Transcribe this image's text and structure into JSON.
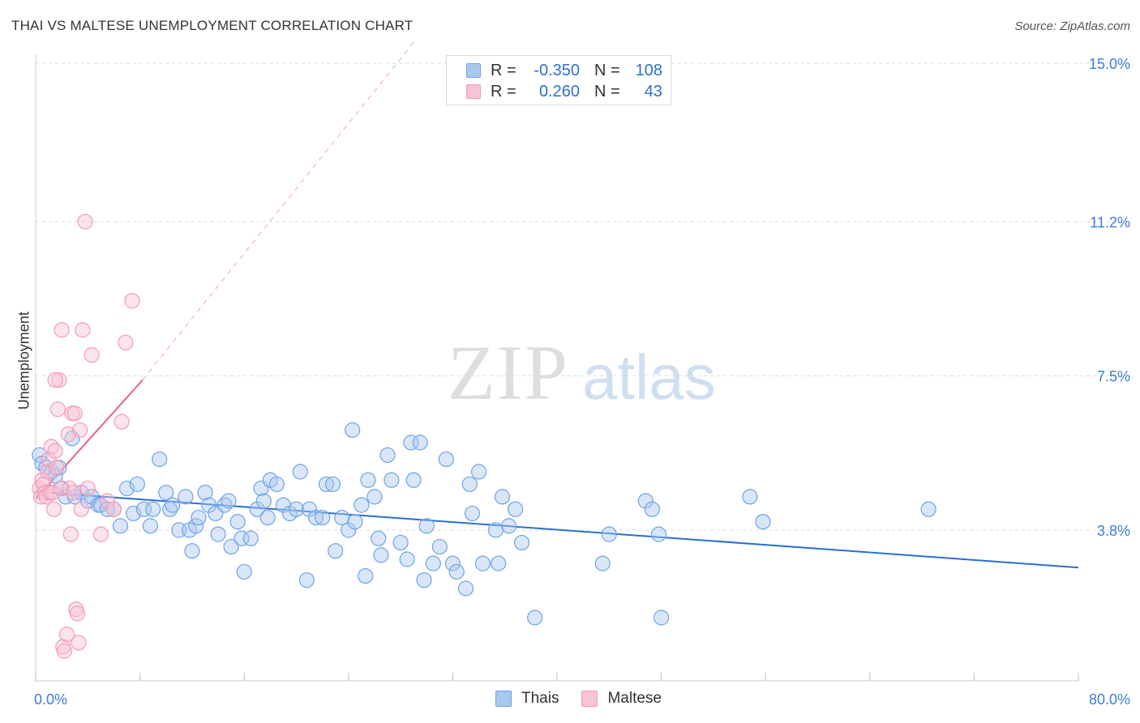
{
  "title": "THAI VS MALTESE UNEMPLOYMENT CORRELATION CHART",
  "source": "Source: ZipAtlas.com",
  "watermark": {
    "zip": "ZIP",
    "atlas": "atlas"
  },
  "colors": {
    "thais": "#6fa3e6",
    "thais_fill": "#a8c8f0",
    "maltese": "#f39ab7",
    "maltese_fill": "#f8c3d4",
    "thais_line": "#2a6fcf",
    "maltese_line": "#e8608f",
    "axis_text": "#3b7dd8"
  },
  "legend": {
    "thais": {
      "r_label": "R =",
      "r_value": "-0.350",
      "n_label": "N =",
      "n_value": "108"
    },
    "maltese": {
      "r_label": "R =",
      "r_value": "0.260",
      "n_label": "N =",
      "n_value": "43"
    }
  },
  "chart_data": {
    "type": "scatter",
    "title": "THAI VS MALTESE UNEMPLOYMENT CORRELATION CHART",
    "xlabel": "",
    "ylabel": "Unemployment",
    "xlim": [
      0,
      80
    ],
    "ylim": [
      0,
      15.5
    ],
    "x_tick_labels": [
      "0.0%",
      "80.0%"
    ],
    "y_tick_labels": [
      "3.8%",
      "7.5%",
      "11.2%",
      "15.0%"
    ],
    "y_ticks": [
      3.8,
      7.5,
      11.2,
      15.0
    ],
    "grid": true,
    "legend_position": "top-center",
    "series": [
      {
        "name": "Thais",
        "points": [
          [
            0.3,
            5.6
          ],
          [
            0.5,
            5.4
          ],
          [
            0.8,
            5.3
          ],
          [
            1.2,
            5.2
          ],
          [
            1.5,
            5.1
          ],
          [
            1.8,
            5.3
          ],
          [
            2.0,
            4.8
          ],
          [
            2.3,
            4.6
          ],
          [
            2.8,
            6.0
          ],
          [
            3.0,
            4.6
          ],
          [
            3.5,
            4.7
          ],
          [
            4.0,
            4.5
          ],
          [
            4.3,
            4.6
          ],
          [
            4.8,
            4.4
          ],
          [
            5.0,
            4.4
          ],
          [
            5.5,
            4.3
          ],
          [
            6.0,
            4.3
          ],
          [
            6.5,
            3.9
          ],
          [
            7.0,
            4.8
          ],
          [
            7.5,
            4.2
          ],
          [
            7.8,
            4.9
          ],
          [
            8.3,
            4.3
          ],
          [
            8.8,
            3.9
          ],
          [
            9.0,
            4.3
          ],
          [
            9.5,
            5.5
          ],
          [
            10.0,
            4.7
          ],
          [
            10.3,
            4.3
          ],
          [
            10.5,
            4.4
          ],
          [
            11.0,
            3.8
          ],
          [
            11.5,
            4.6
          ],
          [
            11.8,
            3.8
          ],
          [
            12.0,
            3.3
          ],
          [
            12.3,
            3.9
          ],
          [
            12.5,
            4.1
          ],
          [
            13.0,
            4.7
          ],
          [
            13.3,
            4.4
          ],
          [
            13.8,
            4.2
          ],
          [
            14.0,
            3.7
          ],
          [
            14.5,
            4.4
          ],
          [
            14.8,
            4.5
          ],
          [
            15.0,
            3.4
          ],
          [
            15.5,
            4.0
          ],
          [
            15.8,
            3.6
          ],
          [
            16.0,
            2.8
          ],
          [
            16.5,
            3.6
          ],
          [
            17.0,
            4.3
          ],
          [
            17.3,
            4.8
          ],
          [
            17.5,
            4.5
          ],
          [
            17.8,
            4.1
          ],
          [
            18.0,
            5.0
          ],
          [
            18.5,
            4.9
          ],
          [
            19.0,
            4.4
          ],
          [
            19.5,
            4.2
          ],
          [
            20.0,
            4.3
          ],
          [
            20.3,
            5.2
          ],
          [
            20.8,
            2.6
          ],
          [
            21.0,
            4.3
          ],
          [
            21.5,
            4.1
          ],
          [
            22.0,
            4.1
          ],
          [
            22.3,
            4.9
          ],
          [
            22.8,
            4.9
          ],
          [
            23.0,
            3.3
          ],
          [
            23.5,
            4.1
          ],
          [
            24.0,
            3.8
          ],
          [
            24.5,
            4.0
          ],
          [
            25.0,
            4.4
          ],
          [
            25.3,
            2.7
          ],
          [
            25.5,
            5.0
          ],
          [
            26.0,
            4.6
          ],
          [
            26.3,
            3.6
          ],
          [
            26.5,
            3.2
          ],
          [
            27.0,
            5.6
          ],
          [
            27.3,
            5.0
          ],
          [
            28.0,
            3.5
          ],
          [
            28.5,
            3.1
          ],
          [
            28.8,
            5.9
          ],
          [
            29.0,
            5.0
          ],
          [
            29.5,
            5.9
          ],
          [
            29.8,
            2.6
          ],
          [
            30.0,
            3.9
          ],
          [
            30.5,
            3.0
          ],
          [
            31.0,
            3.4
          ],
          [
            31.5,
            5.5
          ],
          [
            32.0,
            3.0
          ],
          [
            32.3,
            2.8
          ],
          [
            33.0,
            2.4
          ],
          [
            33.3,
            4.9
          ],
          [
            33.5,
            4.2
          ],
          [
            34.0,
            5.2
          ],
          [
            34.3,
            3.0
          ],
          [
            35.3,
            3.8
          ],
          [
            35.5,
            3.0
          ],
          [
            35.8,
            4.6
          ],
          [
            36.3,
            3.9
          ],
          [
            36.8,
            4.3
          ],
          [
            37.3,
            3.5
          ],
          [
            38.3,
            1.7
          ],
          [
            43.5,
            3.0
          ],
          [
            44.0,
            3.7
          ],
          [
            46.8,
            4.5
          ],
          [
            47.3,
            4.3
          ],
          [
            47.8,
            3.7
          ],
          [
            48.0,
            1.7
          ],
          [
            54.8,
            4.6
          ],
          [
            55.8,
            4.0
          ],
          [
            68.5,
            4.3
          ],
          [
            24.3,
            6.2
          ]
        ]
      },
      {
        "name": "Maltese",
        "points": [
          [
            0.3,
            4.8
          ],
          [
            0.4,
            4.6
          ],
          [
            0.5,
            5.0
          ],
          [
            0.6,
            4.9
          ],
          [
            0.7,
            4.7
          ],
          [
            0.8,
            4.6
          ],
          [
            0.9,
            5.2
          ],
          [
            1.0,
            5.5
          ],
          [
            1.1,
            4.7
          ],
          [
            1.2,
            5.8
          ],
          [
            1.3,
            4.7
          ],
          [
            1.4,
            4.3
          ],
          [
            1.5,
            5.7
          ],
          [
            1.6,
            5.3
          ],
          [
            1.7,
            6.7
          ],
          [
            1.8,
            7.4
          ],
          [
            1.9,
            4.8
          ],
          [
            2.0,
            8.6
          ],
          [
            2.1,
            1.0
          ],
          [
            2.2,
            0.9
          ],
          [
            2.4,
            1.3
          ],
          [
            2.5,
            6.1
          ],
          [
            2.6,
            4.8
          ],
          [
            2.7,
            3.7
          ],
          [
            2.8,
            6.6
          ],
          [
            3.0,
            6.6
          ],
          [
            3.1,
            1.9
          ],
          [
            3.2,
            1.8
          ],
          [
            3.3,
            1.1
          ],
          [
            3.4,
            6.2
          ],
          [
            3.5,
            4.3
          ],
          [
            3.6,
            8.6
          ],
          [
            3.8,
            11.2
          ],
          [
            4.0,
            4.8
          ],
          [
            4.3,
            8.0
          ],
          [
            5.0,
            3.7
          ],
          [
            5.5,
            4.5
          ],
          [
            6.0,
            4.3
          ],
          [
            6.6,
            6.4
          ],
          [
            6.9,
            8.3
          ],
          [
            7.4,
            9.3
          ],
          [
            1.5,
            7.4
          ],
          [
            2.9,
            4.7
          ]
        ]
      }
    ],
    "trend_lines": [
      {
        "series": "Thais",
        "x": [
          0,
          80
        ],
        "y": [
          4.72,
          2.9
        ],
        "style": "solid"
      },
      {
        "series": "Maltese",
        "x": [
          0,
          8.2
        ],
        "y": [
          4.55,
          7.4
        ],
        "style": "solid"
      },
      {
        "series": "Maltese",
        "x": [
          8.2,
          29.0
        ],
        "y": [
          7.4,
          15.5
        ],
        "style": "dashed"
      }
    ]
  }
}
